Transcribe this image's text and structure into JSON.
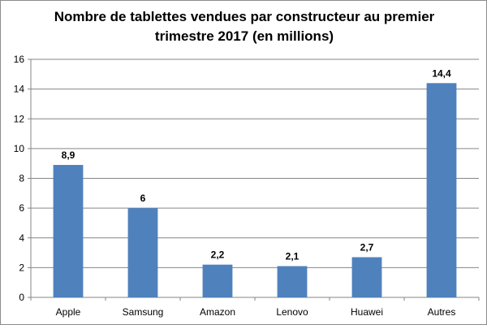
{
  "chart_data": {
    "type": "bar",
    "title_line1": "Nombre de tablettes vendues par constructeur au premier",
    "title_line2": "trimestre 2017 (en millions)",
    "categories": [
      "Apple",
      "Samsung",
      "Amazon",
      "Lenovo",
      "Huawei",
      "Autres"
    ],
    "values": [
      8.9,
      6,
      2.2,
      2.1,
      2.7,
      14.4
    ],
    "data_labels": [
      "8,9",
      "6",
      "2,2",
      "2,1",
      "2,7",
      "14,4"
    ],
    "y_ticks": [
      0,
      2,
      4,
      6,
      8,
      10,
      12,
      14,
      16
    ],
    "ylim": [
      0,
      16
    ],
    "grid": true,
    "legend": "none",
    "colors": {
      "bar": "#4f81bd",
      "grid": "#868686",
      "axis": "#868686"
    }
  }
}
